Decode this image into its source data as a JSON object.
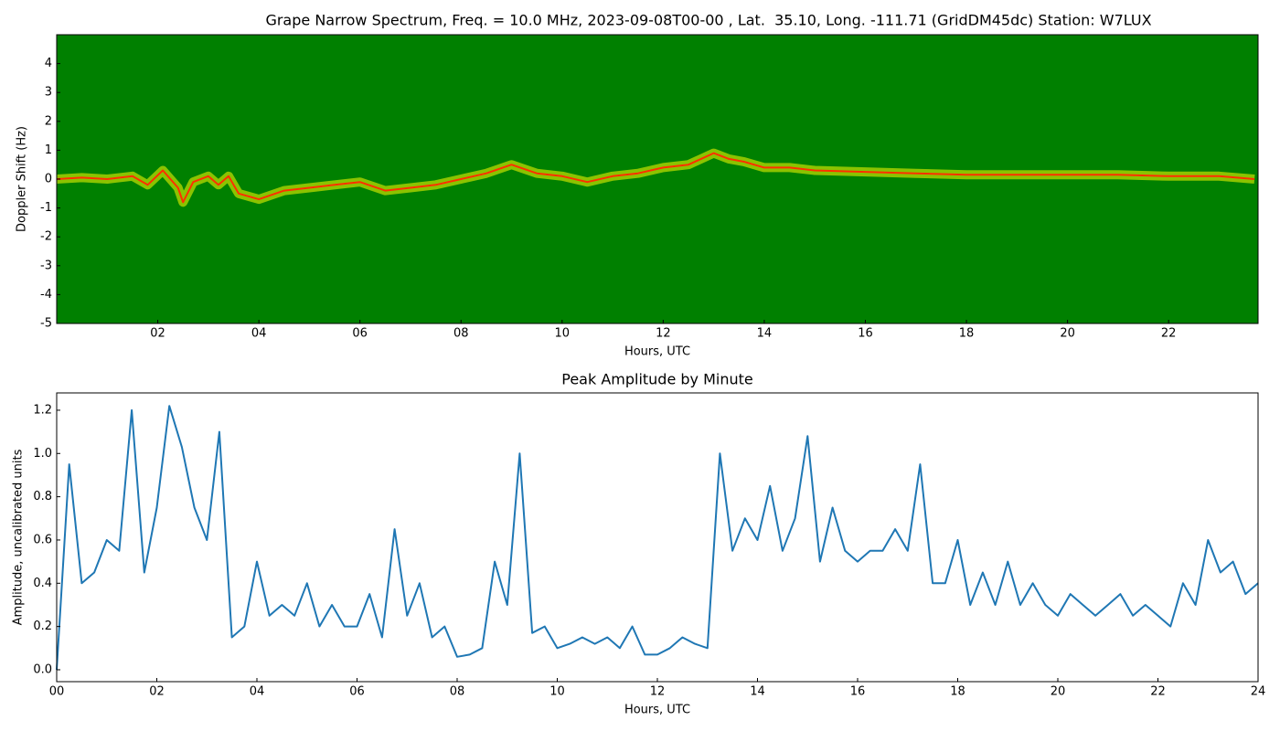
{
  "chart_data": [
    {
      "type": "spectrogram",
      "title": "Grape Narrow Spectrum, Freq. = 10.0 MHz, 2023-09-08T00-00 , Lat.  35.10, Long. -111.71 (GridDM45dc) Station: W7LUX",
      "xlabel": "Hours, UTC",
      "ylabel": "Doppler Shift (Hz)",
      "background": "#008000",
      "color": "#ff3000",
      "glow": "#e8f000",
      "x": [
        0,
        0.5,
        1,
        1.5,
        1.8,
        2.1,
        2.4,
        2.5,
        2.7,
        3,
        3.2,
        3.4,
        3.6,
        4,
        4.5,
        5,
        5.5,
        6,
        6.5,
        7,
        7.5,
        8,
        8.5,
        9,
        9.5,
        10,
        10.5,
        11,
        11.5,
        12,
        12.5,
        13,
        13.3,
        13.6,
        14,
        14.5,
        15,
        16,
        17,
        18,
        19,
        20,
        21,
        22,
        23,
        23.7
      ],
      "values": [
        0,
        0.05,
        0,
        0.1,
        -0.2,
        0.3,
        -0.3,
        -0.8,
        -0.1,
        0.1,
        -0.2,
        0.1,
        -0.5,
        -0.7,
        -0.4,
        -0.3,
        -0.2,
        -0.1,
        -0.4,
        -0.3,
        -0.2,
        0,
        0.2,
        0.5,
        0.2,
        0.1,
        -0.1,
        0.1,
        0.2,
        0.4,
        0.5,
        0.9,
        0.7,
        0.6,
        0.4,
        0.4,
        0.3,
        0.25,
        0.2,
        0.15,
        0.15,
        0.15,
        0.15,
        0.1,
        0.1,
        0
      ],
      "xlim": [
        0,
        23.77
      ],
      "ylim": [
        -5,
        5
      ],
      "xticks": [
        {
          "value": 2,
          "label": "02"
        },
        {
          "value": 4,
          "label": "04"
        },
        {
          "value": 6,
          "label": "06"
        },
        {
          "value": 8,
          "label": "08"
        },
        10,
        12,
        14,
        16,
        18,
        20,
        22
      ],
      "yticks": [
        -5,
        -4,
        -3,
        -2,
        -1,
        0,
        1,
        2,
        3,
        4
      ]
    },
    {
      "type": "line",
      "title": "Peak Amplitude by Minute",
      "xlabel": "Hours, UTC",
      "ylabel": "Amplitude, uncalibrated units",
      "color": "#1f77b4",
      "x": [
        0,
        0.25,
        0.5,
        0.75,
        1,
        1.25,
        1.5,
        1.75,
        2,
        2.25,
        2.5,
        2.75,
        3,
        3.25,
        3.5,
        3.75,
        4,
        4.25,
        4.5,
        4.75,
        5,
        5.25,
        5.5,
        5.75,
        6,
        6.25,
        6.5,
        6.75,
        7,
        7.25,
        7.5,
        7.75,
        8,
        8.25,
        8.5,
        8.75,
        9,
        9.25,
        9.5,
        9.75,
        10,
        10.25,
        10.5,
        10.75,
        11,
        11.25,
        11.5,
        11.75,
        12,
        12.25,
        12.5,
        12.75,
        13,
        13.25,
        13.5,
        13.75,
        14,
        14.25,
        14.5,
        14.75,
        15,
        15.25,
        15.5,
        15.75,
        16,
        16.25,
        16.5,
        16.75,
        17,
        17.25,
        17.5,
        17.75,
        18,
        18.25,
        18.5,
        18.75,
        19,
        19.25,
        19.5,
        19.75,
        20,
        20.25,
        20.5,
        20.75,
        21,
        21.25,
        21.5,
        21.75,
        22,
        22.25,
        22.5,
        22.75,
        23,
        23.25,
        23.5,
        23.75,
        24
      ],
      "values": [
        0,
        0.95,
        0.4,
        0.45,
        0.6,
        0.55,
        1.2,
        0.45,
        0.75,
        1.22,
        1.03,
        0.75,
        0.6,
        1.1,
        0.15,
        0.2,
        0.5,
        0.25,
        0.3,
        0.25,
        0.4,
        0.2,
        0.3,
        0.2,
        0.2,
        0.35,
        0.15,
        0.65,
        0.25,
        0.4,
        0.15,
        0.2,
        0.06,
        0.07,
        0.1,
        0.5,
        0.3,
        1,
        0.17,
        0.2,
        0.1,
        0.12,
        0.15,
        0.12,
        0.15,
        0.1,
        0.2,
        0.07,
        0.07,
        0.1,
        0.15,
        0.12,
        0.1,
        1,
        0.55,
        0.7,
        0.6,
        0.85,
        0.55,
        0.7,
        1.08,
        0.5,
        0.75,
        0.55,
        0.5,
        0.55,
        0.55,
        0.65,
        0.55,
        0.95,
        0.4,
        0.4,
        0.6,
        0.3,
        0.45,
        0.3,
        0.5,
        0.3,
        0.4,
        0.3,
        0.25,
        0.35,
        0.3,
        0.25,
        0.3,
        0.35,
        0.25,
        0.3,
        0.25,
        0.2,
        0.4,
        0.3,
        0.6,
        0.45,
        0.5,
        0.35,
        0.4
      ],
      "xlim": [
        0,
        24
      ],
      "ylim": [
        -0.055,
        1.28
      ],
      "xticks": [
        {
          "value": 0,
          "label": "00"
        },
        {
          "value": 2,
          "label": "02"
        },
        {
          "value": 4,
          "label": "04"
        },
        {
          "value": 6,
          "label": "06"
        },
        {
          "value": 8,
          "label": "08"
        },
        10,
        12,
        14,
        16,
        18,
        20,
        22,
        24
      ],
      "yticks": [
        {
          "value": 0,
          "label": "0.0"
        },
        0.2,
        0.4,
        0.6,
        0.8,
        {
          "value": 1,
          "label": "1.0"
        },
        1.2
      ]
    }
  ]
}
